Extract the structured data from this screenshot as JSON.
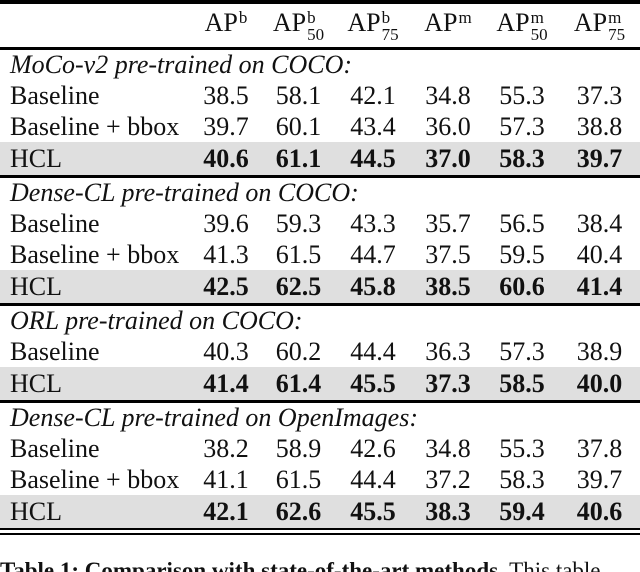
{
  "colors": {
    "highlight_bg": "#dfdfdf",
    "rule": "#000000",
    "text": "#111111"
  },
  "table": {
    "columns": [
      {
        "base": "AP",
        "sup": "b",
        "sub": ""
      },
      {
        "base": "AP",
        "sup": "b",
        "sub": "50"
      },
      {
        "base": "AP",
        "sup": "b",
        "sub": "75"
      },
      {
        "base": "AP",
        "sup": "m",
        "sub": ""
      },
      {
        "base": "AP",
        "sup": "m",
        "sub": "50"
      },
      {
        "base": "AP",
        "sup": "m",
        "sub": "75"
      }
    ],
    "sections": [
      {
        "header": "MoCo-v2 pre-trained on COCO:",
        "rows": [
          {
            "label": "Baseline",
            "values": [
              "38.5",
              "58.1",
              "42.1",
              "34.8",
              "55.3",
              "37.3"
            ],
            "highlight": false
          },
          {
            "label": "Baseline + bbox",
            "values": [
              "39.7",
              "60.1",
              "43.4",
              "36.0",
              "57.3",
              "38.8"
            ],
            "highlight": false
          },
          {
            "label": "HCL",
            "values": [
              "40.6",
              "61.1",
              "44.5",
              "37.0",
              "58.3",
              "39.7"
            ],
            "highlight": true
          }
        ]
      },
      {
        "header": "Dense-CL pre-trained on COCO:",
        "rows": [
          {
            "label": "Baseline",
            "values": [
              "39.6",
              "59.3",
              "43.3",
              "35.7",
              "56.5",
              "38.4"
            ],
            "highlight": false
          },
          {
            "label": "Baseline + bbox",
            "values": [
              "41.3",
              "61.5",
              "44.7",
              "37.5",
              "59.5",
              "40.4"
            ],
            "highlight": false
          },
          {
            "label": "HCL",
            "values": [
              "42.5",
              "62.5",
              "45.8",
              "38.5",
              "60.6",
              "41.4"
            ],
            "highlight": true
          }
        ]
      },
      {
        "header": "ORL pre-trained on COCO:",
        "rows": [
          {
            "label": "Baseline",
            "values": [
              "40.3",
              "60.2",
              "44.4",
              "36.3",
              "57.3",
              "38.9"
            ],
            "highlight": false
          },
          {
            "label": "HCL",
            "values": [
              "41.4",
              "61.4",
              "45.5",
              "37.3",
              "58.5",
              "40.0"
            ],
            "highlight": true
          }
        ]
      },
      {
        "header": "Dense-CL pre-trained on OpenImages:",
        "rows": [
          {
            "label": "Baseline",
            "values": [
              "38.2",
              "58.9",
              "42.6",
              "34.8",
              "55.3",
              "37.8"
            ],
            "highlight": false
          },
          {
            "label": "Baseline + bbox",
            "values": [
              "41.1",
              "61.5",
              "44.4",
              "37.2",
              "58.3",
              "39.7"
            ],
            "highlight": false
          },
          {
            "label": "HCL",
            "values": [
              "42.1",
              "62.6",
              "45.5",
              "38.3",
              "59.4",
              "40.6"
            ],
            "highlight": true
          }
        ]
      }
    ]
  },
  "caption": {
    "bold": "Table 1: Comparison with state-of-the-art methods.",
    "rest": " This table"
  }
}
